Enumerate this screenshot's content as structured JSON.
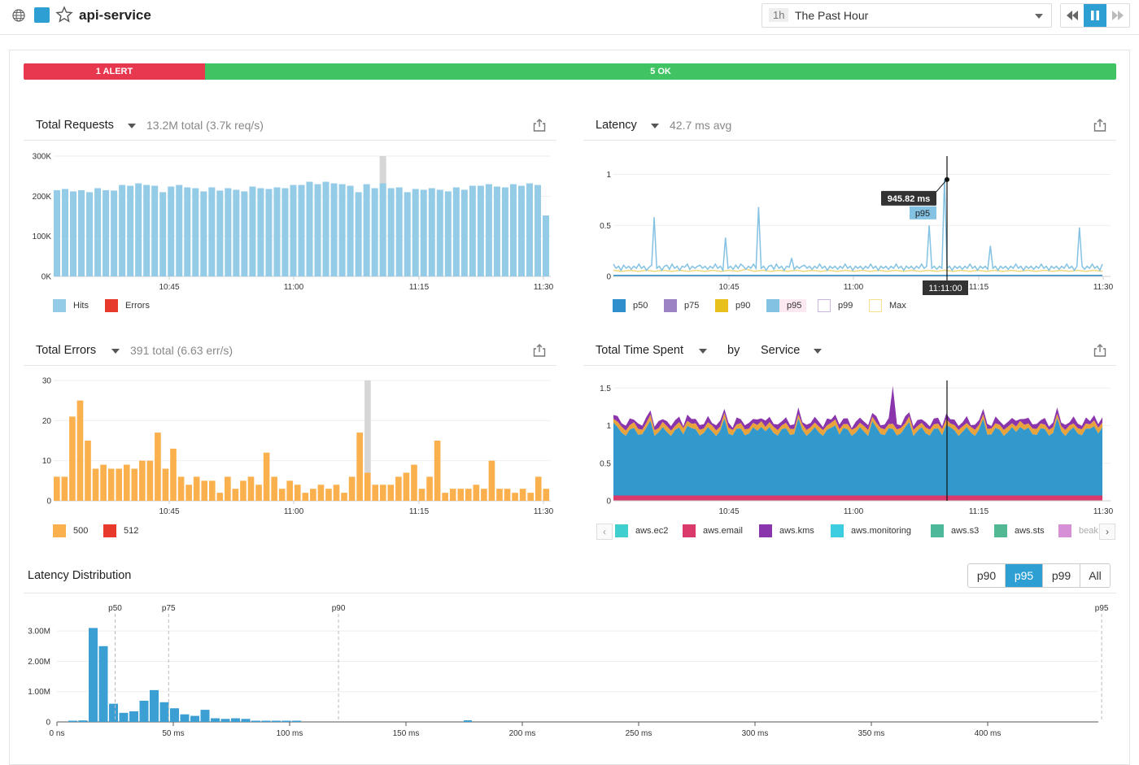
{
  "header": {
    "service_name": "api-service",
    "time_abbr": "1h",
    "time_label": "The Past Hour",
    "colors": {
      "service": "#2e9fd3"
    }
  },
  "status": {
    "alert_label": "1 ALERT",
    "ok_label": "5 OK",
    "alert_color": "#e8384f",
    "ok_color": "#40c463"
  },
  "panels": {
    "requests": {
      "title": "Total Requests",
      "summary": "13.2M total (3.7k req/s)"
    },
    "latency": {
      "title": "Latency",
      "summary": "42.7 ms avg"
    },
    "errors": {
      "title": "Total Errors",
      "summary": "391 total (6.63 err/s)"
    },
    "time_spent": {
      "title": "Total Time Spent",
      "by_label": "by",
      "group": "Service"
    },
    "distribution": {
      "title": "Latency Distribution"
    }
  },
  "percentile_buttons": [
    "p90",
    "p95",
    "p99",
    "All"
  ],
  "active_percentile": "p95",
  "legends": {
    "requests": [
      {
        "label": "Hits",
        "color": "#94cbe6"
      },
      {
        "label": "Errors",
        "color": "#e8392d"
      }
    ],
    "latency": [
      {
        "label": "p50",
        "color": "#2e8fcc"
      },
      {
        "label": "p75",
        "color": "#9c84c4"
      },
      {
        "label": "p90",
        "color": "#e8c01d"
      },
      {
        "label": "p95",
        "color": "#83c2e3"
      },
      {
        "label": "p99",
        "color": "#c9b6e0"
      },
      {
        "label": "Max",
        "color": "#f7e18d"
      }
    ],
    "errors": [
      {
        "label": "500",
        "color": "#fbb04e"
      },
      {
        "label": "512",
        "color": "#e8392d"
      }
    ],
    "time_spent": [
      {
        "label": "aws.ec2",
        "color": "#3fcfcf"
      },
      {
        "label": "aws.email",
        "color": "#d93a6b"
      },
      {
        "label": "aws.kms",
        "color": "#8b35ad"
      },
      {
        "label": "aws.monitoring",
        "color": "#3dcde0"
      },
      {
        "label": "aws.s3",
        "color": "#4db89a"
      },
      {
        "label": "aws.sts",
        "color": "#52b893"
      },
      {
        "label": "beak",
        "color": "#d691d6"
      }
    ]
  },
  "chart_data": [
    {
      "id": "requests",
      "type": "bar",
      "x_ticks": [
        "10:45",
        "11:00",
        "11:15",
        "11:30"
      ],
      "y_ticks": [
        "0K",
        "100K",
        "200K",
        "300K"
      ],
      "ylim": [
        0,
        300000
      ],
      "series": [
        {
          "name": "Hits",
          "values": [
            215000,
            218000,
            212000,
            215000,
            210000,
            220000,
            215000,
            214000,
            228000,
            226000,
            232000,
            228000,
            226000,
            210000,
            224000,
            228000,
            222000,
            220000,
            212000,
            222000,
            214000,
            220000,
            216000,
            212000,
            224000,
            220000,
            218000,
            222000,
            220000,
            228000,
            228000,
            236000,
            230000,
            236000,
            232000,
            230000,
            226000,
            210000,
            230000,
            220000,
            232000,
            220000,
            222000,
            210000,
            218000,
            216000,
            220000,
            216000,
            212000,
            222000,
            216000,
            226000,
            226000,
            230000,
            224000,
            222000,
            230000,
            226000,
            232000,
            228000,
            152000
          ]
        }
      ],
      "highlight_index": 40
    },
    {
      "id": "latency",
      "type": "line",
      "x_ticks": [
        "10:45",
        "11:00",
        "11:15",
        "11:30"
      ],
      "y_ticks": [
        "0",
        "0.5",
        "1"
      ],
      "ylim": [
        0,
        1.1
      ],
      "tooltip_value": "945.82 ms",
      "tooltip_series": "p95",
      "crosshair_time": "11:11:00",
      "series": [
        {
          "name": "p95",
          "values": [
            0.12,
            0.08,
            0.1,
            0.06,
            0.11,
            0.08,
            0.1,
            0.07,
            0.1,
            0.08,
            0.12,
            0.08,
            0.1,
            0.06,
            0.09,
            0.11,
            0.58,
            0.08,
            0.1,
            0.06,
            0.1,
            0.11,
            0.07,
            0.12,
            0.08,
            0.1,
            0.06,
            0.1,
            0.09,
            0.12,
            0.07,
            0.1,
            0.08,
            0.1,
            0.11,
            0.08,
            0.1,
            0.07,
            0.1,
            0.08,
            0.12,
            0.08,
            0.1,
            0.06,
            0.38,
            0.08,
            0.1,
            0.07,
            0.11,
            0.08,
            0.12,
            0.1,
            0.07,
            0.1,
            0.08,
            0.12,
            0.08,
            0.68,
            0.08,
            0.1,
            0.06,
            0.1,
            0.11,
            0.07,
            0.12,
            0.08,
            0.1,
            0.06,
            0.1,
            0.09,
            0.18,
            0.07,
            0.1,
            0.08,
            0.1,
            0.11,
            0.08,
            0.1,
            0.07,
            0.1,
            0.08,
            0.12,
            0.08,
            0.1,
            0.06,
            0.1,
            0.08,
            0.1,
            0.07,
            0.1,
            0.08,
            0.12,
            0.08,
            0.1,
            0.06,
            0.1,
            0.08,
            0.1,
            0.07,
            0.1,
            0.08,
            0.12,
            0.08,
            0.1,
            0.06,
            0.1,
            0.08,
            0.1,
            0.07,
            0.1,
            0.08,
            0.12,
            0.08,
            0.1,
            0.06,
            0.1,
            0.08,
            0.1,
            0.07,
            0.1,
            0.08,
            0.12,
            0.08,
            0.1,
            0.5,
            0.08,
            0.1,
            0.07,
            0.1,
            0.08,
            0.95,
            0.08,
            0.1,
            0.06,
            0.1,
            0.08,
            0.1,
            0.07,
            0.1,
            0.08,
            0.12,
            0.08,
            0.1,
            0.06,
            0.1,
            0.08,
            0.1,
            0.07,
            0.3,
            0.08,
            0.1,
            0.06,
            0.1,
            0.08,
            0.1,
            0.07,
            0.1,
            0.08,
            0.12,
            0.08,
            0.1,
            0.06,
            0.1,
            0.08,
            0.1,
            0.07,
            0.1,
            0.08,
            0.12,
            0.08,
            0.1,
            0.06,
            0.1,
            0.08,
            0.1,
            0.07,
            0.1,
            0.08,
            0.12,
            0.08,
            0.1,
            0.06,
            0.1,
            0.48,
            0.1,
            0.07,
            0.1,
            0.08,
            0.12,
            0.08,
            0.1,
            0.06,
            0.12
          ]
        },
        {
          "name": "p90",
          "values": [
            0.06,
            0.05,
            0.06,
            0.05,
            0.06,
            0.05,
            0.06,
            0.05,
            0.06,
            0.05,
            0.06,
            0.05,
            0.06,
            0.05,
            0.06,
            0.05,
            0.07,
            0.05,
            0.06,
            0.05,
            0.06,
            0.05,
            0.06,
            0.05,
            0.06,
            0.05,
            0.06,
            0.05,
            0.06,
            0.05,
            0.06,
            0.05,
            0.06,
            0.05,
            0.06,
            0.05,
            0.06,
            0.05,
            0.06,
            0.05,
            0.06,
            0.05,
            0.06,
            0.05,
            0.06,
            0.05,
            0.06,
            0.05,
            0.06,
            0.05,
            0.06,
            0.05,
            0.06,
            0.05,
            0.06,
            0.05,
            0.06,
            0.05,
            0.06,
            0.05
          ]
        },
        {
          "name": "p50",
          "values": [
            0.01,
            0.01,
            0.01,
            0.01,
            0.01,
            0.01,
            0.01,
            0.01,
            0.01,
            0.01,
            0.01,
            0.01,
            0.01,
            0.01,
            0.01,
            0.01,
            0.01,
            0.01,
            0.01,
            0.01
          ]
        }
      ]
    },
    {
      "id": "errors",
      "type": "bar",
      "x_ticks": [
        "10:45",
        "11:00",
        "11:15",
        "11:30"
      ],
      "y_ticks": [
        "0",
        "10",
        "20",
        "30"
      ],
      "ylim": [
        0,
        30
      ],
      "series": [
        {
          "name": "500",
          "values": [
            6,
            6,
            21,
            25,
            15,
            8,
            9,
            8,
            8,
            9,
            8,
            10,
            10,
            17,
            8,
            13,
            6,
            4,
            6,
            5,
            5,
            2,
            6,
            3,
            5,
            6,
            4,
            12,
            6,
            3,
            5,
            4,
            2,
            3,
            4,
            3,
            4,
            2,
            6,
            17,
            7,
            4,
            4,
            4,
            6,
            7,
            9,
            3,
            6,
            15,
            2,
            3,
            3,
            3,
            4,
            3,
            10,
            3,
            3,
            2,
            3,
            2,
            6,
            3
          ]
        }
      ],
      "highlight_index": 40
    },
    {
      "id": "time_spent",
      "type": "area",
      "x_ticks": [
        "10:45",
        "11:00",
        "11:15",
        "11:30"
      ],
      "y_ticks": [
        "0",
        "0.5",
        "1",
        "1.5"
      ],
      "ylim": [
        0,
        1.6
      ]
    },
    {
      "id": "distribution",
      "type": "bar",
      "x_ticks": [
        "0 ns",
        "50 ms",
        "100 ms",
        "150 ms",
        "200 ms",
        "250 ms",
        "300 ms",
        "350 ms",
        "400 ms"
      ],
      "y_ticks": [
        "0",
        "1.00M",
        "2.00M",
        "3.00M"
      ],
      "ylim": [
        0,
        3300000
      ],
      "markers": [
        {
          "label": "p50",
          "value_ms": 25
        },
        {
          "label": "p75",
          "value_ms": 48
        },
        {
          "label": "p90",
          "value_ms": 121
        },
        {
          "label": "p95",
          "value_ms": 449
        }
      ],
      "series": [
        {
          "name": "count",
          "values": [
            20000,
            50000,
            3100000,
            2500000,
            600000,
            300000,
            350000,
            700000,
            1050000,
            650000,
            450000,
            250000,
            200000,
            400000,
            120000,
            100000,
            120000,
            100000,
            20000,
            20000,
            20000,
            20000,
            20000
          ]
        }
      ]
    }
  ]
}
